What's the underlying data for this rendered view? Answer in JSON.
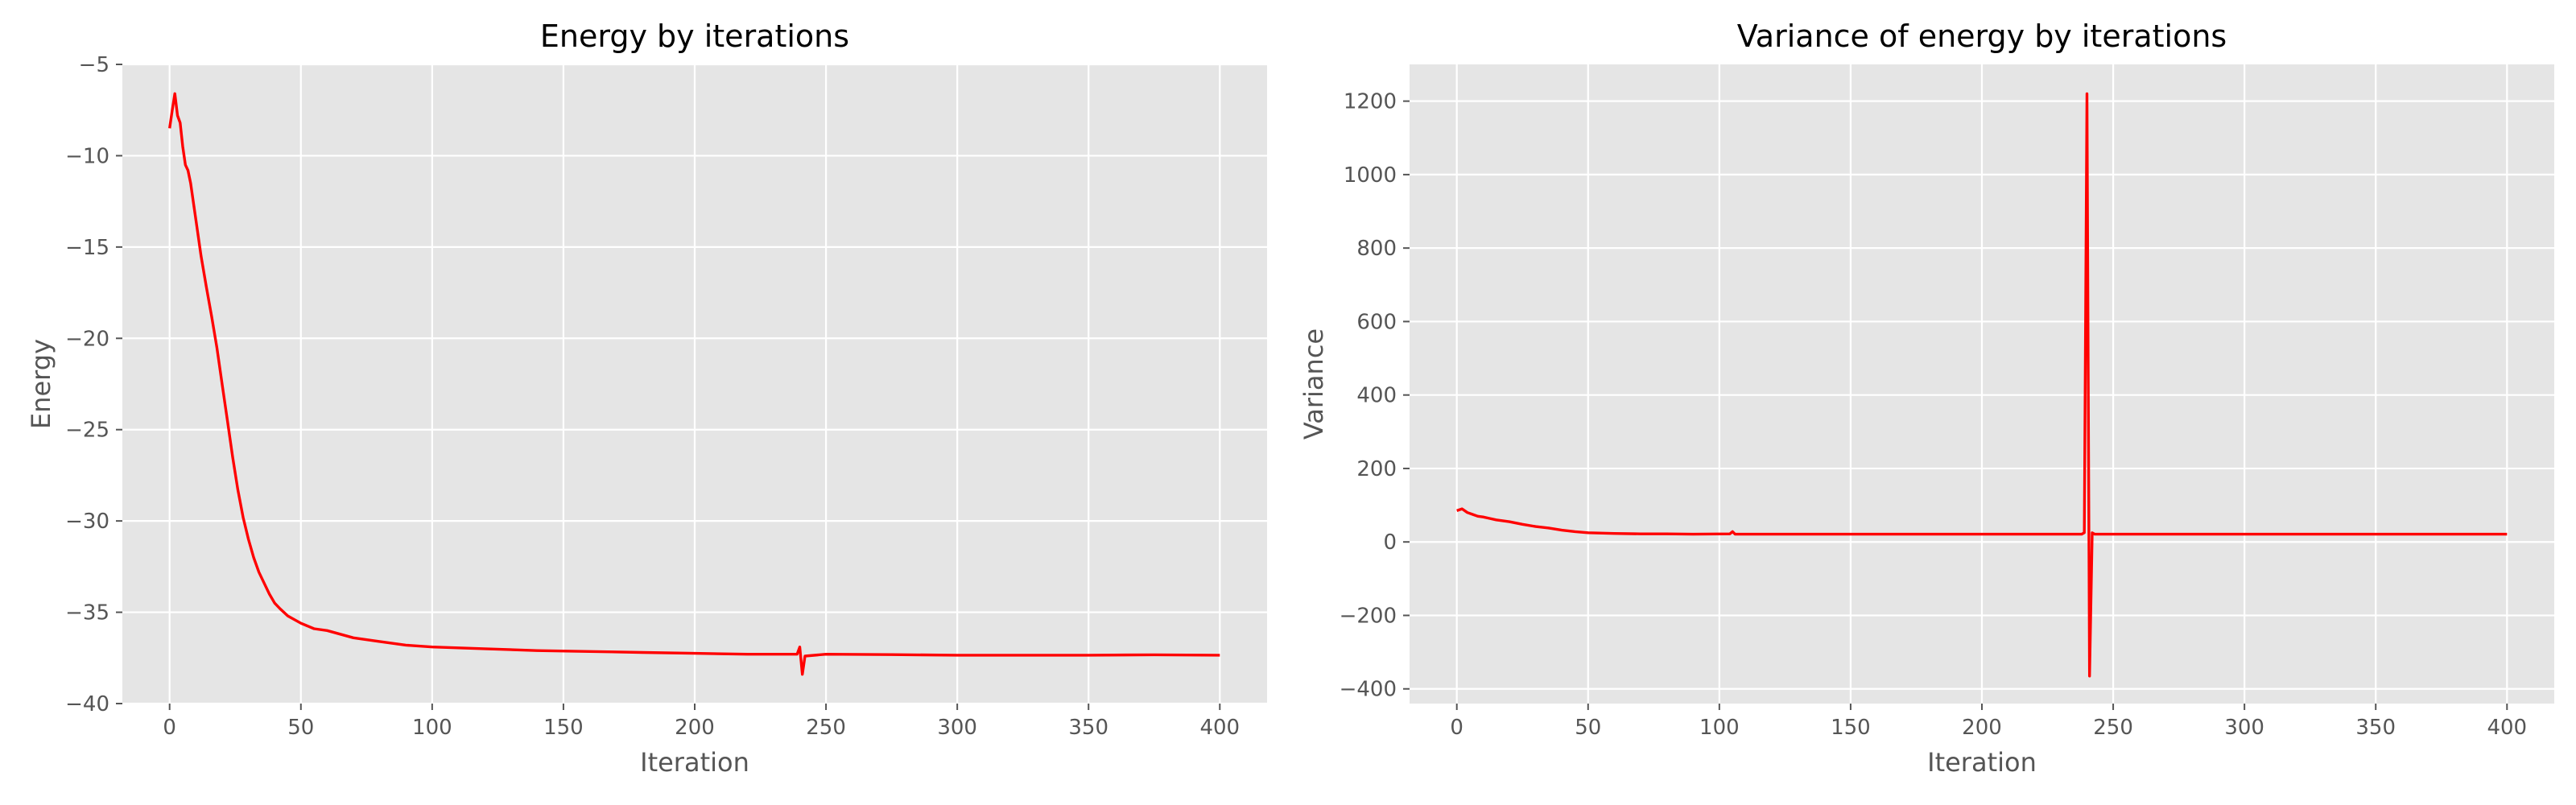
{
  "chart_data": [
    {
      "type": "line",
      "title": "Energy by iterations",
      "xlabel": "Iteration",
      "ylabel": "Energy",
      "xlim": [
        -18,
        418
      ],
      "ylim": [
        -40,
        -5
      ],
      "x_ticks": [
        0,
        50,
        100,
        150,
        200,
        250,
        300,
        350,
        400
      ],
      "y_ticks": [
        -40,
        -35,
        -30,
        -25,
        -20,
        -15,
        -10,
        -5
      ],
      "grid": true,
      "series": [
        {
          "color": "#ff0000",
          "points": [
            [
              0,
              -8.5
            ],
            [
              1,
              -7.5
            ],
            [
              2,
              -6.6
            ],
            [
              3,
              -7.8
            ],
            [
              4,
              -8.2
            ],
            [
              5,
              -9.5
            ],
            [
              6,
              -10.5
            ],
            [
              7,
              -10.8
            ],
            [
              8,
              -11.5
            ],
            [
              10,
              -13.5
            ],
            [
              12,
              -15.5
            ],
            [
              14,
              -17.2
            ],
            [
              16,
              -18.8
            ],
            [
              18,
              -20.5
            ],
            [
              20,
              -22.5
            ],
            [
              22,
              -24.5
            ],
            [
              24,
              -26.5
            ],
            [
              26,
              -28.3
            ],
            [
              28,
              -29.8
            ],
            [
              30,
              -31
            ],
            [
              32,
              -32
            ],
            [
              34,
              -32.8
            ],
            [
              36,
              -33.4
            ],
            [
              38,
              -34
            ],
            [
              40,
              -34.5
            ],
            [
              42,
              -34.8
            ],
            [
              45,
              -35.2
            ],
            [
              50,
              -35.6
            ],
            [
              55,
              -35.9
            ],
            [
              60,
              -36
            ],
            [
              65,
              -36.2
            ],
            [
              70,
              -36.4
            ],
            [
              80,
              -36.6
            ],
            [
              90,
              -36.8
            ],
            [
              100,
              -36.9
            ],
            [
              120,
              -37
            ],
            [
              140,
              -37.1
            ],
            [
              160,
              -37.15
            ],
            [
              180,
              -37.2
            ],
            [
              200,
              -37.25
            ],
            [
              220,
              -37.3
            ],
            [
              239,
              -37.3
            ],
            [
              240,
              -36.9
            ],
            [
              241,
              -38.4
            ],
            [
              242,
              -37.4
            ],
            [
              250,
              -37.3
            ],
            [
              275,
              -37.32
            ],
            [
              300,
              -37.35
            ],
            [
              325,
              -37.35
            ],
            [
              350,
              -37.35
            ],
            [
              375,
              -37.33
            ],
            [
              400,
              -37.35
            ]
          ]
        }
      ]
    },
    {
      "type": "line",
      "title": "Variance of energy by iterations",
      "xlabel": "Iteration",
      "ylabel": "Variance",
      "xlim": [
        -18,
        418
      ],
      "ylim": [
        -440,
        1300
      ],
      "x_ticks": [
        0,
        50,
        100,
        150,
        200,
        250,
        300,
        350,
        400
      ],
      "y_ticks": [
        -400,
        -200,
        0,
        200,
        400,
        600,
        800,
        1000,
        1200
      ],
      "grid": true,
      "series": [
        {
          "color": "#ff0000",
          "points": [
            [
              0,
              85
            ],
            [
              2,
              90
            ],
            [
              4,
              80
            ],
            [
              6,
              75
            ],
            [
              8,
              70
            ],
            [
              10,
              68
            ],
            [
              12,
              65
            ],
            [
              15,
              60
            ],
            [
              20,
              55
            ],
            [
              25,
              48
            ],
            [
              30,
              42
            ],
            [
              35,
              38
            ],
            [
              40,
              32
            ],
            [
              45,
              28
            ],
            [
              50,
              25
            ],
            [
              60,
              23
            ],
            [
              70,
              22
            ],
            [
              80,
              22
            ],
            [
              90,
              21
            ],
            [
              104,
              22
            ],
            [
              105,
              28
            ],
            [
              106,
              21
            ],
            [
              120,
              21
            ],
            [
              150,
              21
            ],
            [
              200,
              21
            ],
            [
              238,
              21
            ],
            [
              239,
              25
            ],
            [
              240,
              1220
            ],
            [
              241,
              -365
            ],
            [
              242,
              25
            ],
            [
              243,
              21
            ],
            [
              260,
              21
            ],
            [
              300,
              21
            ],
            [
              350,
              21
            ],
            [
              400,
              21
            ]
          ]
        }
      ]
    }
  ]
}
